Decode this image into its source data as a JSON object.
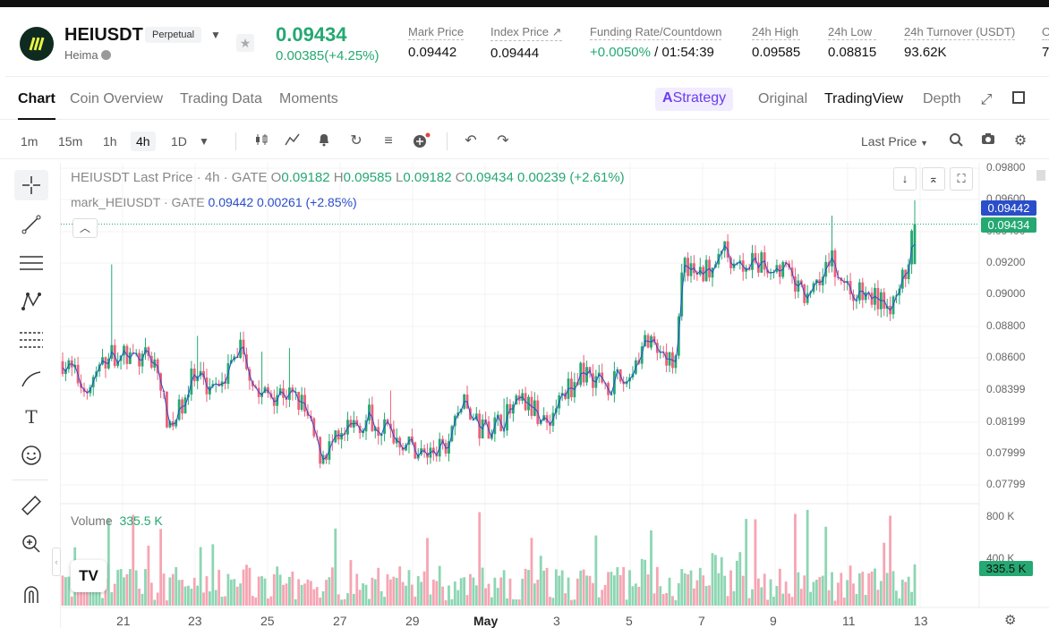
{
  "ticker": {
    "symbol": "HEIUSDT",
    "badge": "Perpetual",
    "name": "Heima",
    "price": "0.09434",
    "change": "0.00385(+4.25%)",
    "stats": [
      {
        "label": "Mark Price",
        "value": "0.09442"
      },
      {
        "label": "Index Price ↗",
        "value": "0.09444"
      },
      {
        "label": "Funding Rate/Countdown",
        "value_green": "+0.0050%",
        "value": " / 01:54:39"
      },
      {
        "label": "24h High",
        "value": "0.09585"
      },
      {
        "label": "24h Low",
        "value": "0.08815"
      },
      {
        "label": "24h Turnover (USDT)",
        "value": "93.62K"
      },
      {
        "label": "O",
        "value": "7"
      }
    ]
  },
  "tabs": [
    "Chart",
    "Coin Overview",
    "Trading Data",
    "Moments"
  ],
  "right_tabs": {
    "strategy": "Strategy",
    "original": "Original",
    "tradingview": "TradingView",
    "depth": "Depth"
  },
  "timeframes": [
    "1m",
    "15m",
    "1h",
    "4h",
    "1D"
  ],
  "active_timeframe": "4h",
  "price_type": "Last Price",
  "legend": {
    "line1_prefix": "HEIUSDT Last Price · 4h · GATE",
    "o_label": "O",
    "o": "0.09182",
    "h_label": "H",
    "h": "0.09585",
    "l_label": "L",
    "l": "0.09182",
    "c_label": "C",
    "c": "0.09434",
    "change": "0.00239 (+2.61%)",
    "line2_prefix": "mark_HEIUSDT · GATE",
    "mark_value": "0.09442",
    "mark_change": "0.00261 (+2.85%)"
  },
  "volume_label": "Volume",
  "volume_value": "335.5 K",
  "colors": {
    "up": "#25a872",
    "down": "#ef5f7a",
    "accent": "#2a4ec9",
    "vol_up": "#8dd6b3",
    "vol_down": "#f6a5b3"
  },
  "chart_data": {
    "type": "candlestick",
    "price_axis_ticks": [
      "0.09800",
      "0.09600",
      "0.09400",
      "0.09200",
      "0.09000",
      "0.08800",
      "0.08600",
      "0.08399",
      "0.08199",
      "0.07999",
      "0.07799"
    ],
    "price_labels": [
      {
        "text": "0.09442",
        "value": 0.09442,
        "kind": "mark"
      },
      {
        "text": "0.09434",
        "value": 0.09434,
        "kind": "last"
      }
    ],
    "ylim": [
      0.0769,
      0.0982
    ],
    "volume_axis_ticks": [
      "800 K",
      "400 K"
    ],
    "volume_current_label": "335.5 K",
    "x_ticks": [
      "21",
      "23",
      "25",
      "27",
      "29",
      "May",
      "3",
      "5",
      "7",
      "9",
      "11",
      "13"
    ],
    "last_candle": {
      "o": 0.09182,
      "h": 0.09585,
      "l": 0.09182,
      "c": 0.09434
    }
  }
}
